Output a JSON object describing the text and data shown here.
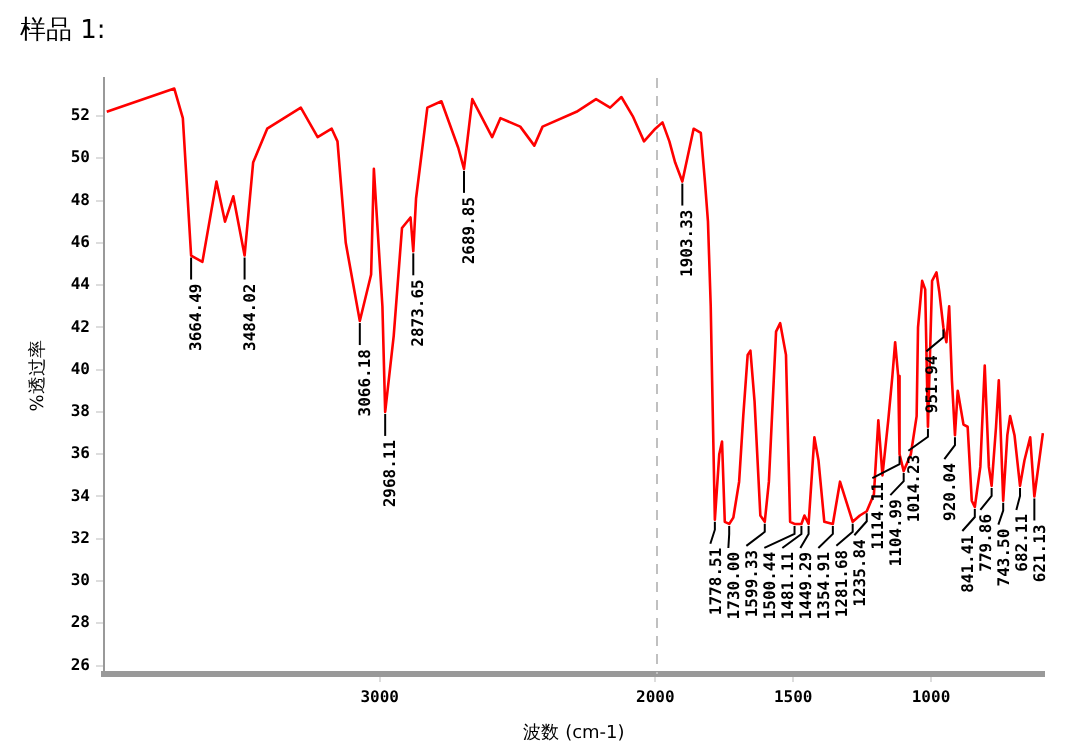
{
  "chart_data": {
    "type": "line",
    "title": "样品 1:",
    "xlabel": "波数 (cm-1)",
    "ylabel": "%透过率",
    "x": [
      3990,
      3745,
      3714,
      3684,
      3643,
      3592,
      3561,
      3531,
      3490,
      3459,
      3408,
      3286,
      3225,
      3174,
      3153,
      3123,
      3072,
      3031,
      3021,
      2990,
      2980,
      2949,
      2919,
      2888,
      2878,
      2868,
      2827,
      2776,
      2715,
      2694,
      2664,
      2592,
      2562,
      2490,
      2439,
      2409,
      2286,
      2215,
      2164,
      2123,
      2082,
      2041,
      2000,
      1974,
      1949,
      1928,
      1902,
      1861,
      1835,
      1820,
      1809,
      1799,
      1794,
      1784,
      1768,
      1758,
      1748,
      1732,
      1717,
      1696,
      1681,
      1665,
      1655,
      1640,
      1619,
      1603,
      1588,
      1562,
      1547,
      1526,
      1511,
      1495,
      1470,
      1459,
      1444,
      1423,
      1408,
      1387,
      1356,
      1330,
      1284,
      1258,
      1233,
      1207,
      1191,
      1176,
      1155,
      1140,
      1130,
      1119,
      1114,
      1099,
      1073,
      1052,
      1047,
      1032,
      1021,
      1011,
      996,
      980,
      970,
      955,
      944,
      934,
      924,
      913,
      903,
      882,
      867,
      852,
      841,
      821,
      805,
      790,
      780,
      764,
      754,
      738,
      723,
      713,
      697,
      677,
      661,
      640,
      625,
      594
    ],
    "series": [
      {
        "color": "#ff0000",
        "values": [
          52.2,
          53.3,
          51.9,
          45.4,
          45.1,
          48.9,
          47,
          48.2,
          45.4,
          49.8,
          51.4,
          52.4,
          51,
          51.4,
          50.8,
          46,
          42.3,
          44.5,
          49.5,
          43,
          38,
          41.6,
          46.7,
          47.2,
          45.6,
          48.1,
          52.4,
          52.7,
          50.5,
          49.5,
          52.8,
          51,
          51.9,
          51.5,
          50.6,
          51.5,
          52.2,
          52.8,
          52.4,
          52.9,
          52,
          50.8,
          51.4,
          51.7,
          50.8,
          49.8,
          48.9,
          51.4,
          51.2,
          48.9,
          47,
          43,
          39.5,
          32.9,
          36,
          36.6,
          32.8,
          32.7,
          33,
          34.7,
          37.8,
          40.7,
          40.9,
          38.5,
          33.1,
          32.8,
          34.7,
          41.8,
          42.2,
          40.7,
          32.8,
          32.7,
          32.7,
          33.1,
          32.7,
          36.8,
          35.7,
          32.8,
          32.7,
          34.7,
          32.8,
          33.1,
          33.3,
          34.1,
          37.6,
          35,
          37.6,
          39.7,
          41.3,
          39.7,
          36,
          35.2,
          36,
          37.8,
          42,
          44.2,
          43.8,
          37.3,
          44.2,
          44.6,
          43.7,
          42,
          41.3,
          43,
          39.5,
          36.9,
          39,
          37.4,
          37.3,
          33.8,
          33.5,
          35.4,
          40.2,
          35.4,
          34.5,
          37.3,
          39.5,
          33.8,
          36.9,
          37.8,
          36.9,
          34.5,
          35.7,
          36.8,
          34,
          37
        ]
      }
    ],
    "xlim": [
      4000,
      590
    ],
    "xticks": [
      3000,
      2000,
      1500,
      1000
    ],
    "ylim": [
      25.6,
      53.8
    ],
    "yticks": [
      26,
      28,
      30,
      32,
      34,
      36,
      38,
      40,
      42,
      44,
      46,
      48,
      50,
      52
    ],
    "grid": false,
    "legend": false,
    "marker": "none",
    "line_style": "solid",
    "ref_lines": [
      {
        "axis": "x",
        "value": 2000,
        "color": "#c0c0c0",
        "line_style": "dashed"
      }
    ],
    "annotations": [
      {
        "text": "3664.49",
        "x": 3684,
        "y": 45.4
      },
      {
        "text": "3484.02",
        "x": 3490,
        "y": 45.4
      },
      {
        "text": "3066.18",
        "x": 3072,
        "y": 42.3
      },
      {
        "text": "2968.11",
        "x": 2980,
        "y": 38
      },
      {
        "text": "2873.65",
        "x": 2878,
        "y": 45.6
      },
      {
        "text": "2689.85",
        "x": 2694,
        "y": 49.5
      },
      {
        "text": "1903.33",
        "x": 1902,
        "y": 48.9
      },
      {
        "text": "1778.51",
        "x": 1784,
        "y": 32.9
      },
      {
        "text": "1730.00",
        "x": 1732,
        "y": 32.7
      },
      {
        "text": "1599.33",
        "x": 1603,
        "y": 32.8
      },
      {
        "text": "1500.44",
        "x": 1495,
        "y": 32.7
      },
      {
        "text": "1481.11",
        "x": 1470,
        "y": 32.7
      },
      {
        "text": "1449.29",
        "x": 1444,
        "y": 32.7
      },
      {
        "text": "1354.91",
        "x": 1356,
        "y": 32.7
      },
      {
        "text": "1281.68",
        "x": 1284,
        "y": 32.8
      },
      {
        "text": "1235.84",
        "x": 1233,
        "y": 33.3
      },
      {
        "text": "1114.11",
        "x": 1114,
        "y": 36
      },
      {
        "text": "1104.99",
        "x": 1099,
        "y": 35.2
      },
      {
        "text": "1014.23",
        "x": 1011,
        "y": 37.3
      },
      {
        "text": "951.94",
        "x": 955,
        "y": 42
      },
      {
        "text": "920.04",
        "x": 913,
        "y": 36.9
      },
      {
        "text": "841.41",
        "x": 841,
        "y": 33.5
      },
      {
        "text": "779.86",
        "x": 780,
        "y": 34.5
      },
      {
        "text": "743.50",
        "x": 738,
        "y": 33.8
      },
      {
        "text": "682.11",
        "x": 677,
        "y": 34.5
      },
      {
        "text": "621.13",
        "x": 625,
        "y": 34
      }
    ]
  }
}
